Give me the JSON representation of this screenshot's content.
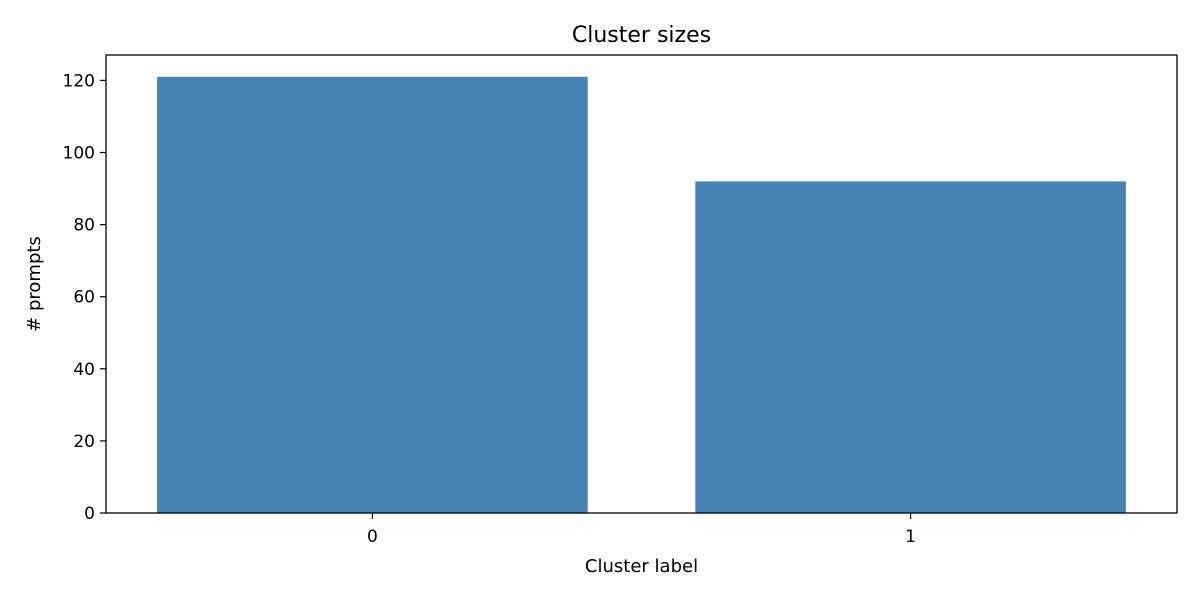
{
  "chart_data": {
    "type": "bar",
    "title": "Cluster sizes",
    "xlabel": "Cluster label",
    "ylabel": "# prompts",
    "categories": [
      "0",
      "1"
    ],
    "values": [
      121,
      92
    ],
    "ylim": [
      0,
      127.05
    ],
    "yticks": [
      "0",
      "20",
      "40",
      "60",
      "80",
      "100",
      "120"
    ],
    "bar_color": "#4682B4",
    "grid": false
  }
}
